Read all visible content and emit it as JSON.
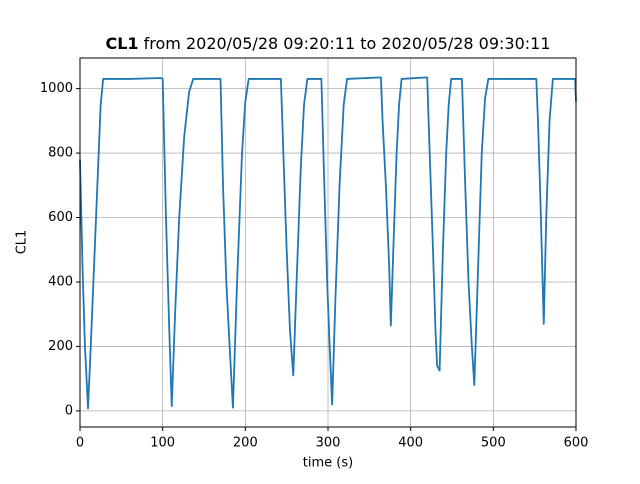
{
  "chart_data": {
    "type": "line",
    "title_bold": "CL1",
    "title_rest": "from 2020/05/28 09:20:11 to 2020/05/28 09:30:11",
    "xlabel": "time (s)",
    "ylabel": "CL1",
    "xlim": [
      0,
      600
    ],
    "ylim": [
      -50,
      1095
    ],
    "xticks": [
      0,
      100,
      200,
      300,
      400,
      500,
      600
    ],
    "yticks": [
      0,
      200,
      400,
      600,
      800,
      1000
    ],
    "grid": true,
    "series": [
      {
        "name": "CL1",
        "color": "#1f77b4",
        "x": [
          0,
          3,
          6,
          9.7,
          13,
          17,
          21,
          25,
          28,
          60,
          98,
          100,
          104,
          108,
          111,
          115,
          120,
          126,
          132,
          137,
          170,
          173,
          177,
          181,
          185,
          190,
          196,
          200,
          204,
          243,
          246,
          250,
          254,
          258,
          262,
          267,
          271,
          275,
          292,
          295,
          299,
          302,
          305,
          309,
          314,
          319,
          323,
          364,
          366,
          370,
          374,
          376,
          379,
          383,
          386,
          389,
          420,
          423,
          427,
          430,
          432,
          435,
          439,
          443,
          446,
          449,
          462,
          466,
          470,
          474,
          477,
          481,
          486,
          490,
          494,
          552,
          554,
          557,
          561,
          564,
          568,
          572,
          599,
          600
        ],
        "values": [
          780,
          450,
          200,
          8,
          200,
          450,
          700,
          950,
          1030,
          1030,
          1033,
          1030,
          600,
          250,
          15,
          300,
          600,
          850,
          990,
          1030,
          1030,
          700,
          400,
          200,
          10,
          400,
          800,
          960,
          1030,
          1030,
          800,
          500,
          250,
          110,
          400,
          750,
          950,
          1030,
          1030,
          750,
          400,
          200,
          20,
          350,
          700,
          950,
          1030,
          1035,
          900,
          700,
          450,
          265,
          500,
          800,
          950,
          1030,
          1035,
          800,
          500,
          250,
          140,
          125,
          500,
          800,
          950,
          1030,
          1030,
          700,
          400,
          200,
          80,
          400,
          800,
          970,
          1030,
          1030,
          900,
          650,
          270,
          600,
          900,
          1030,
          1030,
          960
        ]
      }
    ]
  }
}
